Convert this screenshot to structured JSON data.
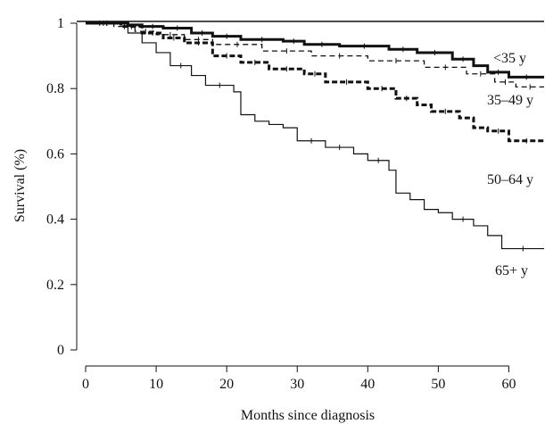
{
  "chart_data": {
    "type": "line",
    "subtype": "step",
    "xlabel": "Months since diagnosis",
    "ylabel": "Survival (%)",
    "xlim": [
      0,
      65
    ],
    "ylim": [
      0,
      1
    ],
    "x_ticks": [
      0,
      10,
      20,
      30,
      40,
      50,
      60
    ],
    "y_ticks": [
      0,
      0.2,
      0.4,
      0.6,
      0.8,
      1
    ],
    "y_tick_labels": [
      "0",
      "0.2",
      "0.4",
      "0.6",
      "0.8",
      "1"
    ],
    "grid": false,
    "series": [
      {
        "name": "<35 y",
        "style": "solid-thick",
        "x": [
          0,
          6,
          8,
          11,
          15,
          18,
          22,
          28,
          31,
          36,
          43,
          47,
          52,
          55,
          57,
          60,
          65
        ],
        "y": [
          1.0,
          0.995,
          0.99,
          0.985,
          0.97,
          0.96,
          0.95,
          0.945,
          0.935,
          0.93,
          0.92,
          0.91,
          0.89,
          0.87,
          0.85,
          0.835,
          0.835
        ]
      },
      {
        "name": "35–49 y",
        "style": "dashed-thin",
        "x": [
          0,
          4,
          7,
          10,
          14,
          18,
          25,
          32,
          40,
          48,
          54,
          58,
          61,
          65
        ],
        "y": [
          1.0,
          0.99,
          0.975,
          0.965,
          0.95,
          0.935,
          0.915,
          0.9,
          0.885,
          0.865,
          0.845,
          0.82,
          0.805,
          0.805
        ]
      },
      {
        "name": "50–64 y",
        "style": "dashed-thick",
        "x": [
          0,
          5,
          8,
          11,
          14,
          18,
          22,
          26,
          31,
          34,
          40,
          44,
          47,
          49,
          53,
          55,
          57,
          60,
          65
        ],
        "y": [
          1.0,
          0.99,
          0.97,
          0.955,
          0.94,
          0.9,
          0.88,
          0.86,
          0.845,
          0.82,
          0.8,
          0.77,
          0.75,
          0.73,
          0.71,
          0.68,
          0.67,
          0.64,
          0.64
        ]
      },
      {
        "name": "65+ y",
        "style": "solid-thin",
        "x": [
          0,
          6,
          8,
          10,
          12,
          15,
          17,
          21,
          22,
          24,
          26,
          28,
          30,
          34,
          38,
          40,
          43,
          44,
          46,
          48,
          50,
          52,
          55,
          57,
          59,
          65
        ],
        "y": [
          1.0,
          0.97,
          0.94,
          0.91,
          0.87,
          0.84,
          0.81,
          0.79,
          0.72,
          0.7,
          0.69,
          0.68,
          0.64,
          0.62,
          0.6,
          0.58,
          0.55,
          0.48,
          0.46,
          0.43,
          0.42,
          0.4,
          0.38,
          0.35,
          0.31,
          0.31
        ]
      }
    ]
  }
}
